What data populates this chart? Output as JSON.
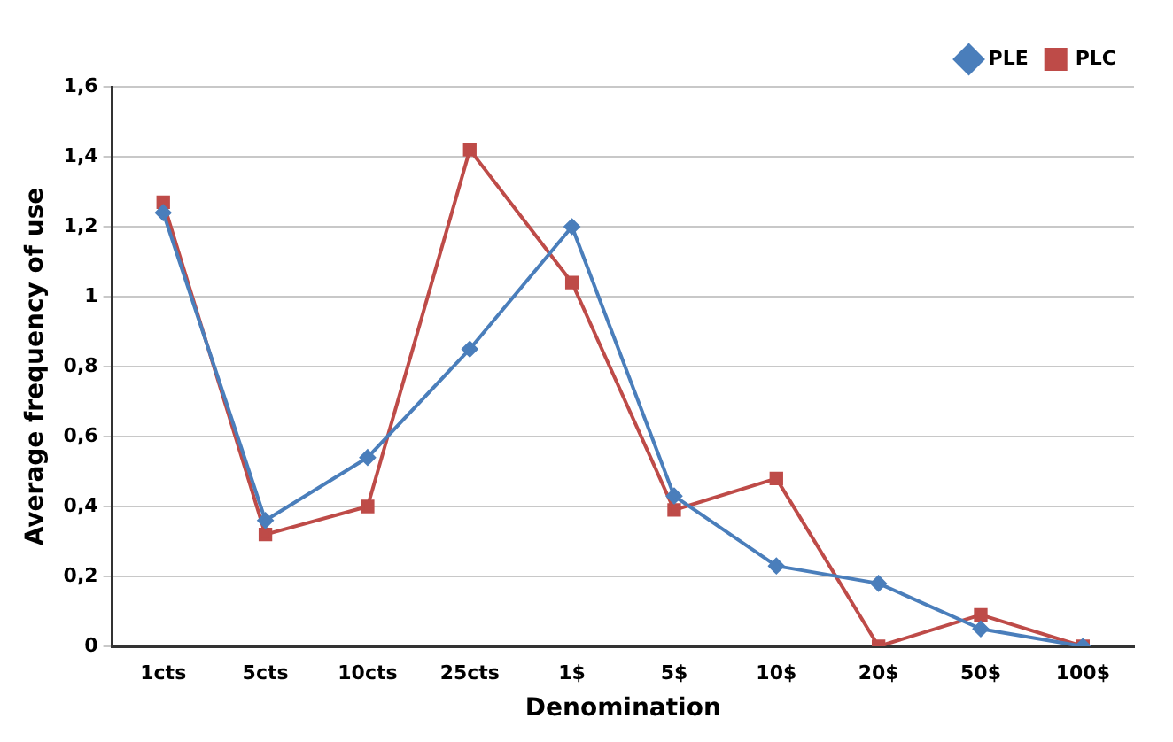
{
  "chart_data": {
    "type": "line",
    "xlabel": "Denomination",
    "ylabel": "Average frequency of use",
    "categories": [
      "1cts",
      "5cts",
      "10cts",
      "25cts",
      "1$",
      "5$",
      "10$",
      "20$",
      "50$",
      "100$"
    ],
    "series": [
      {
        "name": "PLE",
        "color": "#4a7ebb",
        "marker": "diamond",
        "values": [
          1.24,
          0.36,
          0.54,
          0.85,
          1.2,
          0.43,
          0.23,
          0.18,
          0.05,
          0
        ]
      },
      {
        "name": "PLC",
        "color": "#be4b48",
        "marker": "square",
        "values": [
          1.27,
          0.32,
          0.4,
          1.42,
          1.04,
          0.39,
          0.48,
          0,
          0.09,
          0
        ]
      }
    ],
    "ylim": [
      0,
      1.6
    ],
    "yticks": [
      0,
      {
        "value": 0.2,
        "label": "0,2"
      },
      {
        "value": 0.4,
        "label": "0,4"
      },
      {
        "value": 0.6,
        "label": "0,6"
      },
      {
        "value": 0.8,
        "label": "0,8"
      },
      1,
      {
        "value": 1.2,
        "label": "1,2"
      },
      {
        "value": 1.4,
        "label": "1,4"
      },
      {
        "value": 1.6,
        "label": "1,6"
      }
    ],
    "grid": "y",
    "legend": "top right",
    "line_style": "solid"
  }
}
